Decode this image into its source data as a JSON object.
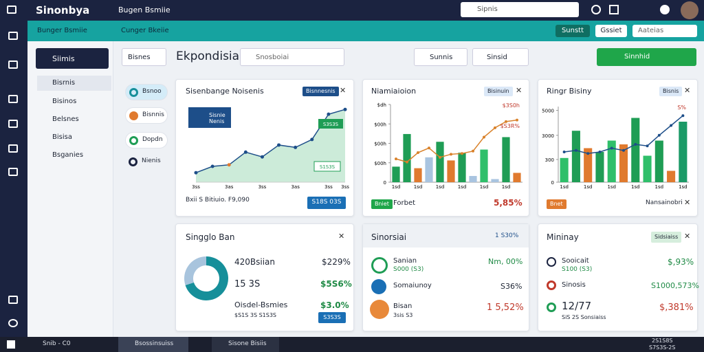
{
  "app": {
    "logo": "Sinonbya",
    "workspace": "Bugen Bsmiie",
    "search": "Sipnis"
  },
  "subnav": {
    "left": [
      "Bunger Bsmiie",
      "Cunger Bkeiie"
    ],
    "buttons": [
      "Sunstt",
      "Gssiet"
    ],
    "search": "Aateias"
  },
  "sidebar": {
    "active": "Siimis",
    "items": [
      "Bisrnis",
      "Bisinos",
      "Belsnes",
      "Bisisa",
      "Bsganies"
    ]
  },
  "toolbar": {
    "button": "Bisnes",
    "title": "Ekpondisiai",
    "search": "Snosboiai",
    "filters": [
      "Sunnis",
      "Sinsid"
    ],
    "action": "Sinnhid"
  },
  "legend": [
    "Bsnoo",
    "Bisnnis",
    "Dopdn",
    "Nienis"
  ],
  "charts": [
    {
      "type": "area",
      "title": "Sisenbange Noisenis",
      "tag": "Bisnnesnis",
      "badge": "Sisnie Nenis",
      "annotations": [
        "S3S3S",
        "S1S3S"
      ],
      "categories": [
        "3ss",
        null,
        "3as",
        null,
        "3ss",
        null,
        "3as",
        null,
        "3ss",
        "3ss"
      ],
      "values": [
        12,
        20,
        22,
        38,
        32,
        47,
        44,
        54,
        86,
        92
      ],
      "ylim": [
        0,
        100
      ],
      "color": "#1f9d55",
      "footer": "Bxii  S Bitiuio. F9,090",
      "button": "S18S 03S"
    },
    {
      "type": "bar",
      "title": "Niamiaioion",
      "tag": "Bisinuin",
      "annotations": [
        "$3S0h",
        "$S3R%"
      ],
      "categories": [
        "1sd",
        null,
        "1sd",
        null,
        "1sd",
        null,
        "1sd",
        null,
        "1sd",
        null,
        "1sd",
        null
      ],
      "values": [
        20,
        62,
        18,
        32,
        52,
        28,
        38,
        8,
        42,
        4,
        58,
        12
      ],
      "bar_colors": [
        "#1f9d55",
        "#1f9d55",
        "#e07a2e",
        "#a9c4e0",
        "#1f9d55",
        "#e07a2e",
        "#1f9d55",
        "#a9c4e0",
        "#2fbf6a",
        "#a9c4e0",
        "#1f9d55",
        "#e07a2e"
      ],
      "line": [
        30,
        26,
        38,
        44,
        32,
        36,
        37,
        40,
        58,
        70,
        78,
        80
      ],
      "line_color": "#d9822b",
      "ylim": [
        0,
        100
      ],
      "yticks": [
        0,
        {
          "value": 25,
          "label": "$00h"
        },
        {
          "value": 50,
          "label": "$00h"
        },
        {
          "value": 75,
          "label": "$00h"
        },
        {
          "value": 100,
          "label": "$dh"
        }
      ],
      "footer_tag": "Bniet",
      "footer": "Forbet",
      "footer_value": "5,85%"
    },
    {
      "type": "bar",
      "title": "Ringr Bisiny",
      "tag": "Bisnis",
      "annotations": [
        "S%"
      ],
      "categories": [
        "1sd",
        null,
        "1sd",
        null,
        "1sd",
        null,
        "1sd",
        null,
        "1sd",
        null,
        "1sd"
      ],
      "values": [
        32,
        68,
        45,
        40,
        55,
        50,
        85,
        35,
        55,
        15,
        80
      ],
      "bar_colors": [
        "#2fbf6a",
        "#1f9d55",
        "#e07a2e",
        "#1f9d55",
        "#2fbf6a",
        "#e07a2e",
        "#1f9d55",
        "#2fbf6a",
        "#1f9d55",
        "#e07a2e",
        "#1a9a66"
      ],
      "line": [
        40,
        42,
        38,
        40,
        45,
        42,
        50,
        48,
        62,
        75,
        88
      ],
      "line_color": "#1d4e89",
      "ylim": [
        0,
        100
      ],
      "yticks": [
        0,
        {
          "value": 30,
          "label": "300"
        },
        {
          "value": 62,
          "label": "3000"
        },
        {
          "value": 95,
          "label": "5000"
        }
      ],
      "footer_tag": "Bnet",
      "footer": "Nansainobri"
    }
  ],
  "panels": [
    {
      "type": "pie",
      "title": "Singglo Ban",
      "values": [
        70,
        30
      ],
      "colors": [
        "#168f9a",
        "#a8c4dd"
      ],
      "rows": [
        [
          "420Bsiian",
          "$229%"
        ],
        [
          "15 3S",
          "$5S6%"
        ],
        [
          "Oisdel-Bsmies",
          "$3.0%"
        ]
      ],
      "note": "$S1S 3S  S1S3S",
      "button": "S3S3S"
    },
    {
      "title": "Sinorsiai",
      "badge": "1 S30%",
      "rows": [
        [
          "Sanian",
          "S000 (S3)",
          "Nm, 00%"
        ],
        [
          "Somaiunoy",
          "",
          "S36%"
        ],
        [
          "Bisan",
          "3sis S3",
          "1 5,52%"
        ]
      ]
    },
    {
      "title": "Mininay",
      "badge": "Sidsiaiss",
      "rows": [
        [
          "Sooicait",
          "S100 (S3)",
          "$,93%"
        ],
        [
          "Sinosis",
          "",
          "S1000,573%"
        ],
        [
          "12/77",
          "SiS 2S Sonsiaiss",
          "$,381%"
        ]
      ]
    }
  ],
  "taskbar": {
    "search": "Snib - C0",
    "apps": [
      "Bsossinsuiss",
      "Sisone Bisiis"
    ],
    "time": "2S1S8S",
    "date": "S7S3S-2S"
  }
}
